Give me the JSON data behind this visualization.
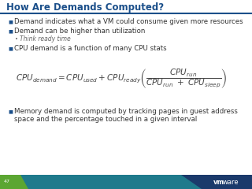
{
  "title": "How Are Demands Computed?",
  "title_color": "#1B4F8A",
  "title_fontsize": 8.5,
  "bg_color": "#FFFFFF",
  "bullet_color": "#1B4F8A",
  "bullet_fontsize": 6.2,
  "sub_bullet_fontsize": 5.5,
  "sub_bullet_color": "#666666",
  "text_color": "#333333",
  "formula_color": "#444444",
  "footer_left_color": "#5BA632",
  "footer_mid_color": "#1F7A8C",
  "footer_right_color": "#1B3A6B",
  "footer_num": "47",
  "bullets": [
    "Demand indicates what a VM could consume given more resources",
    "Demand can be higher than utilization",
    "CPU demand is a function of many CPU stats"
  ],
  "sub_bullet": "Think ready time",
  "memory_line1": "Memory demand is computed by tracking pages in guest address",
  "memory_line2": "space and the percentage touched in a given interval",
  "header_line_color": "#1B4F8A",
  "separator_color": "#1B4F8A"
}
